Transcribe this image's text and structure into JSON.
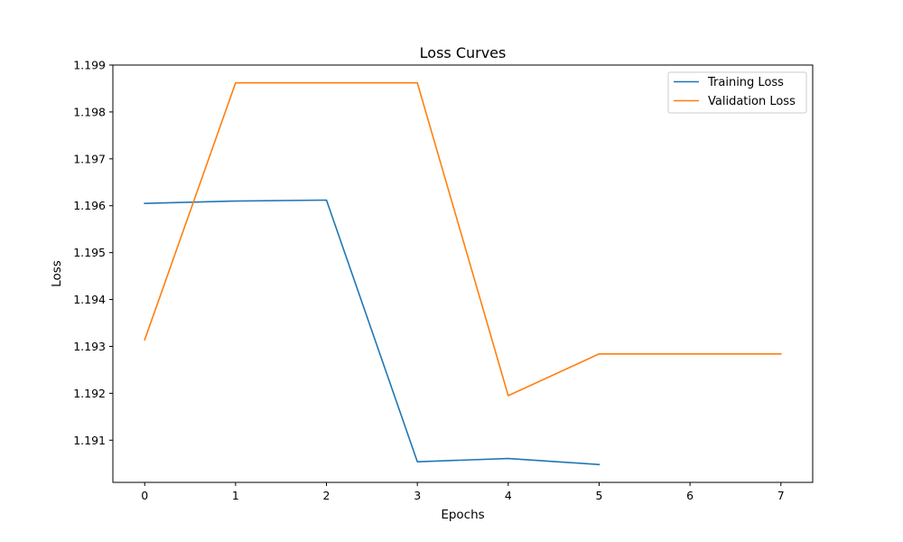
{
  "chart_data": {
    "type": "line",
    "title": "Loss Curves",
    "xlabel": "Epochs",
    "ylabel": "Loss",
    "xlim": [
      -0.35,
      7.35
    ],
    "ylim": [
      1.1901,
      1.199
    ],
    "xticks": [
      0,
      1,
      2,
      3,
      4,
      5,
      6,
      7
    ],
    "yticks": [
      1.191,
      1.192,
      1.193,
      1.194,
      1.195,
      1.196,
      1.197,
      1.198,
      1.199
    ],
    "grid": false,
    "legend_position": "top-right",
    "series": [
      {
        "name": "Training Loss",
        "color": "#1f77b4",
        "x": [
          0,
          1,
          2,
          3,
          4,
          5
        ],
        "y": [
          1.19605,
          1.1961,
          1.19612,
          1.19054,
          1.19061,
          1.19048
        ]
      },
      {
        "name": "Validation Loss",
        "color": "#ff7f0e",
        "x": [
          0,
          1,
          2,
          3,
          4,
          5,
          6,
          7
        ],
        "y": [
          1.19314,
          1.19862,
          1.19862,
          1.19862,
          1.19195,
          1.19284,
          1.19284,
          1.19284
        ]
      }
    ]
  }
}
